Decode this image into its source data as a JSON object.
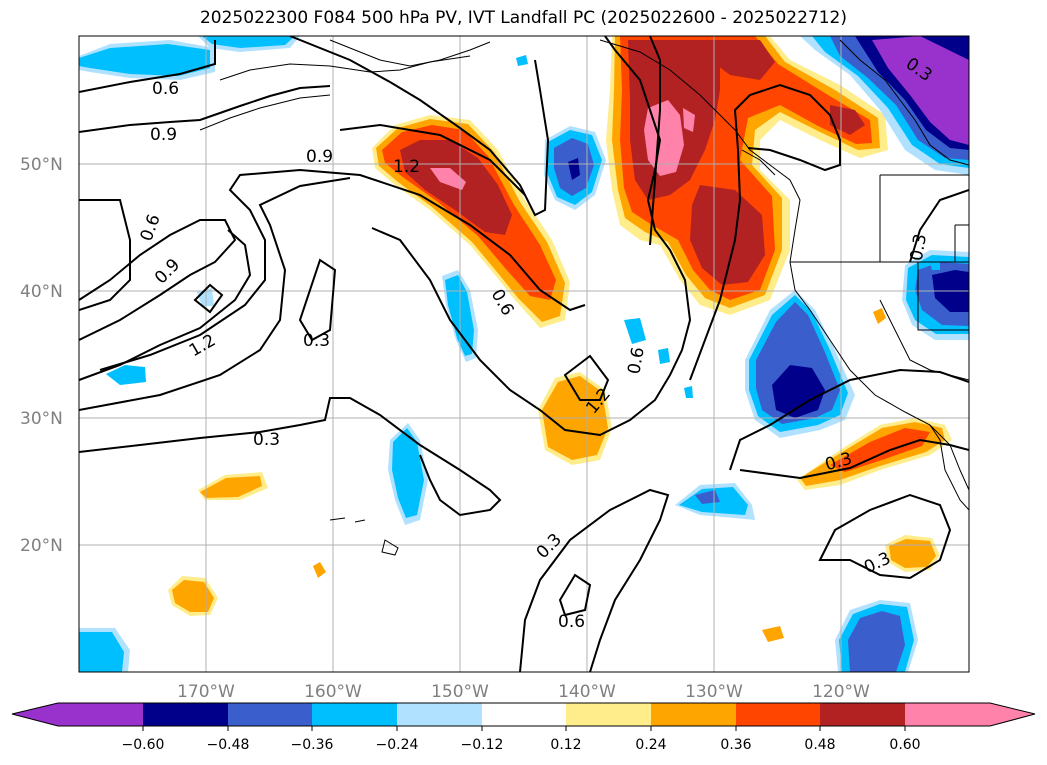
{
  "title": "2025022300 F084 500 hPa PV, IVT Landfall PC (2025022600 - 2025022712)",
  "lat_labels": [
    "50°N",
    "40°N",
    "30°N",
    "20°N"
  ],
  "lon_labels": [
    "170°W",
    "160°W",
    "150°W",
    "140°W",
    "130°W",
    "120°W"
  ],
  "colorbar": {
    "ticks": [
      "−0.60",
      "−0.48",
      "−0.36",
      "−0.24",
      "−0.12",
      "0.12",
      "0.24",
      "0.36",
      "0.48",
      "0.60"
    ],
    "colors": [
      "#9932cc",
      "#00008b",
      "#3a5fcd",
      "#00bfff",
      "#b0e2ff",
      "#ffffff",
      "#ffec8b",
      "#ffa500",
      "#ff4500",
      "#b22222",
      "#ff82ab"
    ]
  },
  "contour_labels": [
    "0.6",
    "0.9",
    "0.9",
    "1.2",
    "0.6",
    "0.9",
    "1.2",
    "0.3",
    "0.3",
    "0.6",
    "0.6",
    "1.2",
    "0.3",
    "0.3",
    "0.6",
    "0.3",
    "0.3",
    "0.3"
  ],
  "colors": {
    "pink": "#ff82ab",
    "dred": "#b22222",
    "red": "#ff4500",
    "orange": "#ffa500",
    "yellow": "#ffec8b",
    "lblue": "#b0e2ff",
    "sky": "#00bfff",
    "blue": "#3a5fcd",
    "navy": "#00008b",
    "purple": "#9932cc"
  }
}
